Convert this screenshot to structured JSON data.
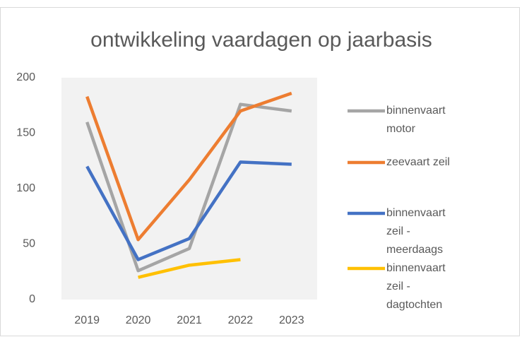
{
  "chart_data": {
    "type": "line",
    "title": "ontwikkeling vaardagen op jaarbasis",
    "categories": [
      "2019",
      "2020",
      "2021",
      "2022",
      "2023"
    ],
    "series": [
      {
        "name": "binnenvaart motor",
        "color": "#a5a5a5",
        "values": [
          160,
          26,
          46,
          176,
          170
        ]
      },
      {
        "name": "zeevaart zeil",
        "color": "#ed7d31",
        "values": [
          183,
          54,
          108,
          170,
          186
        ]
      },
      {
        "name": "binnenvaart zeil - meerdaags",
        "color": "#4472c4",
        "values": [
          120,
          36,
          55,
          124,
          122
        ]
      },
      {
        "name": "binnenvaart zeil - dagtochten",
        "color": "#ffc000",
        "values": [
          null,
          20,
          31,
          36,
          null
        ]
      }
    ],
    "ylim": [
      0,
      200
    ],
    "yticks": [
      0,
      50,
      100,
      150,
      200
    ],
    "grid": false,
    "legend": "right"
  }
}
